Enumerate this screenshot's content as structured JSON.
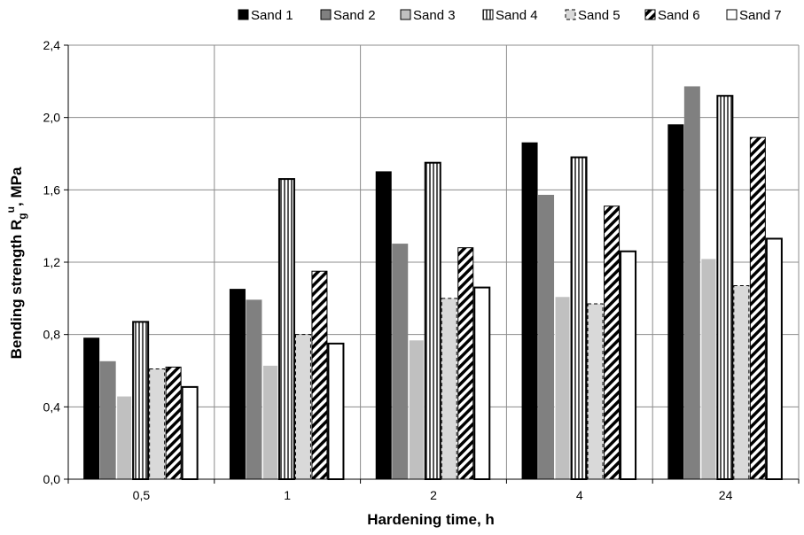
{
  "chart_data": {
    "type": "bar",
    "title": "",
    "xlabel": "Hardening time, h",
    "ylabel": {
      "main": "Bending strength R",
      "sub": "g",
      "sup": "u",
      "suffix": ", MPa"
    },
    "categories": [
      "0,5",
      "1",
      "2",
      "4",
      "24"
    ],
    "ylim": [
      0,
      2.4
    ],
    "yticks": [
      0,
      0.4,
      0.8,
      1.2,
      1.6,
      2.0,
      2.4
    ],
    "ytick_labels": [
      "0,0",
      "0,4",
      "0,8",
      "1,2",
      "1,6",
      "2,0",
      "2,4"
    ],
    "grid": true,
    "legend_position": "top",
    "series": [
      {
        "name": "Sand 1",
        "style": "solid-black",
        "values": [
          0.78,
          1.05,
          1.7,
          1.86,
          1.96
        ]
      },
      {
        "name": "Sand 2",
        "style": "solid-gray",
        "values": [
          0.65,
          0.99,
          1.3,
          1.57,
          2.17
        ]
      },
      {
        "name": "Sand 3",
        "style": "light-gray",
        "values": [
          0.46,
          0.63,
          0.77,
          1.01,
          1.22
        ]
      },
      {
        "name": "Sand 4",
        "style": "vertical-lines",
        "values": [
          0.87,
          1.66,
          1.75,
          1.78,
          2.12
        ]
      },
      {
        "name": "Sand 5",
        "style": "dashed-light",
        "values": [
          0.61,
          0.8,
          1.0,
          0.97,
          1.07
        ]
      },
      {
        "name": "Sand 6",
        "style": "diagonal",
        "values": [
          0.62,
          1.15,
          1.28,
          1.51,
          1.89
        ]
      },
      {
        "name": "Sand 7",
        "style": "white",
        "values": [
          0.51,
          0.75,
          1.06,
          1.26,
          1.33
        ]
      }
    ]
  },
  "colors": {
    "sand1": "#000000",
    "sand2": "#808080",
    "sand3": "#c0c0c0",
    "sand5": "#d9d9d9",
    "grid": "#8c8c8c",
    "axis": "#000000"
  }
}
